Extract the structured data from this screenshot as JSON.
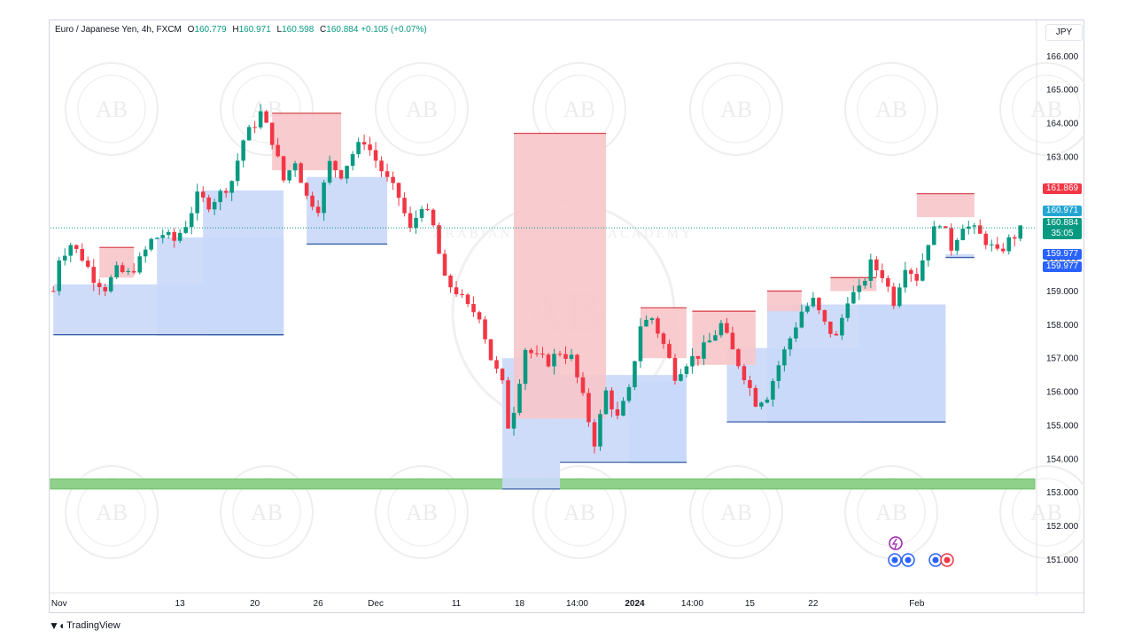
{
  "legend": {
    "symbol": "Euro / Japanese Yen, 4h, FXCM",
    "open_label": "O",
    "open": "160.779",
    "high_label": "H",
    "high": "160.971",
    "low_label": "L",
    "low": "160.598",
    "close_label": "C",
    "close": "160.884",
    "change": "+0.105 (+0.07%)"
  },
  "currency_button": "JPY",
  "price_tags": {
    "red": "161.869",
    "high": "160.971",
    "last": "160.884",
    "countdown": "35:05",
    "blue1": "159.977",
    "blue2": "159.977"
  },
  "colors": {
    "up": "#089981",
    "down": "#f23645",
    "supply_fill": "#f7c5c9",
    "supply_line": "#d84a52",
    "demand_fill": "#c9d8f8",
    "demand_line": "#3a5fa8",
    "support_zone": "#8fd18a",
    "tag_red": "#f23645",
    "tag_cyan": "#22a5d3",
    "tag_green": "#089981",
    "tag_blue": "#2962ff"
  },
  "watermark_text": "ARABIAN BUSINESS ACADEMY",
  "watermark_initials": "AB",
  "footer": {
    "brand": "TradingView"
  },
  "chart_data": {
    "type": "candlestick",
    "title": "",
    "ylim": [
      150.8,
      166.3
    ],
    "y_ticks": [
      "166.000",
      "165.000",
      "164.000",
      "163.000",
      "162.000",
      "161.000",
      "160.000",
      "159.000",
      "158.000",
      "157.000",
      "156.000",
      "155.000",
      "154.000",
      "153.000",
      "152.000",
      "151.000"
    ],
    "x_ticks": [
      "Nov",
      "13",
      "20",
      "26",
      "Dec",
      "11",
      "18",
      "14:00",
      "2024",
      "14:00",
      "15",
      "22",
      "Feb"
    ],
    "x_tick_bars": [
      1,
      22,
      35,
      46,
      56,
      70,
      81,
      91,
      101,
      111,
      121,
      132,
      150
    ],
    "close_path": [
      [
        0,
        159.0
      ],
      [
        1,
        160.0
      ],
      [
        3,
        160.4
      ],
      [
        5,
        160.0
      ],
      [
        7,
        159.4
      ],
      [
        9,
        159.1
      ],
      [
        11,
        159.6
      ],
      [
        13,
        159.5
      ],
      [
        15,
        159.9
      ],
      [
        17,
        160.5
      ],
      [
        19,
        160.7
      ],
      [
        21,
        160.5
      ],
      [
        23,
        161.0
      ],
      [
        25,
        161.8
      ],
      [
        27,
        161.6
      ],
      [
        29,
        161.9
      ],
      [
        31,
        162.3
      ],
      [
        33,
        163.5
      ],
      [
        35,
        164.0
      ],
      [
        36,
        164.3
      ],
      [
        38,
        163.5
      ],
      [
        40,
        162.3
      ],
      [
        42,
        162.9
      ],
      [
        44,
        161.8
      ],
      [
        46,
        161.5
      ],
      [
        48,
        162.8
      ],
      [
        50,
        162.5
      ],
      [
        52,
        163.1
      ],
      [
        54,
        163.5
      ],
      [
        56,
        162.9
      ],
      [
        58,
        162.3
      ],
      [
        60,
        161.8
      ],
      [
        62,
        160.8
      ],
      [
        64,
        161.6
      ],
      [
        66,
        160.9
      ],
      [
        68,
        159.3
      ],
      [
        70,
        159.0
      ],
      [
        72,
        158.5
      ],
      [
        74,
        158.3
      ],
      [
        76,
        157.0
      ],
      [
        78,
        156.2
      ],
      [
        79,
        155.0
      ],
      [
        80,
        155.5
      ],
      [
        82,
        157.3
      ],
      [
        84,
        157.0
      ],
      [
        86,
        156.9
      ],
      [
        88,
        157.2
      ],
      [
        90,
        157.0
      ],
      [
        92,
        155.8
      ],
      [
        94,
        154.5
      ],
      [
        96,
        156.0
      ],
      [
        98,
        155.2
      ],
      [
        100,
        156.0
      ],
      [
        102,
        158.0
      ],
      [
        104,
        158.2
      ],
      [
        106,
        157.4
      ],
      [
        108,
        156.5
      ],
      [
        110,
        156.9
      ],
      [
        112,
        157.1
      ],
      [
        114,
        157.5
      ],
      [
        116,
        158.0
      ],
      [
        118,
        157.2
      ],
      [
        120,
        156.5
      ],
      [
        122,
        155.7
      ],
      [
        124,
        155.9
      ],
      [
        126,
        156.8
      ],
      [
        128,
        157.6
      ],
      [
        130,
        158.4
      ],
      [
        132,
        158.7
      ],
      [
        134,
        158.0
      ],
      [
        136,
        157.6
      ],
      [
        138,
        158.8
      ],
      [
        140,
        159.0
      ],
      [
        142,
        159.8
      ],
      [
        144,
        159.5
      ],
      [
        146,
        158.7
      ],
      [
        148,
        159.8
      ],
      [
        150,
        159.4
      ],
      [
        152,
        160.5
      ],
      [
        154,
        161.1
      ],
      [
        156,
        160.3
      ],
      [
        158,
        161.0
      ],
      [
        160,
        160.8
      ],
      [
        162,
        160.5
      ],
      [
        164,
        160.1
      ],
      [
        166,
        160.5
      ],
      [
        168,
        160.8
      ]
    ],
    "supply_zones": [
      {
        "start_bar": 8,
        "end_bar": 14,
        "top": 160.3,
        "bottom": 159.4
      },
      {
        "start_bar": 38,
        "end_bar": 50,
        "top": 164.3,
        "bottom": 162.6
      },
      {
        "start_bar": 80,
        "end_bar": 96,
        "top": 163.7,
        "bottom": 155.2
      },
      {
        "start_bar": 102,
        "end_bar": 110,
        "top": 158.5,
        "bottom": 157.0
      },
      {
        "start_bar": 111,
        "end_bar": 122,
        "top": 158.4,
        "bottom": 156.8
      },
      {
        "start_bar": 124,
        "end_bar": 130,
        "top": 159.0,
        "bottom": 158.4
      },
      {
        "start_bar": 135,
        "end_bar": 143,
        "top": 159.4,
        "bottom": 159.0
      },
      {
        "start_bar": 150,
        "end_bar": 160,
        "top": 161.9,
        "bottom": 161.2
      }
    ],
    "demand_zones": [
      {
        "start_bar": 0,
        "end_bar": 40,
        "top": 159.2,
        "bottom": 157.7
      },
      {
        "start_bar": 18,
        "end_bar": 40,
        "top": 160.6,
        "bottom": 157.7
      },
      {
        "start_bar": 26,
        "end_bar": 40,
        "top": 162.0,
        "bottom": 157.7
      },
      {
        "start_bar": 44,
        "end_bar": 58,
        "top": 162.4,
        "bottom": 160.4
      },
      {
        "start_bar": 78,
        "end_bar": 88,
        "top": 157.0,
        "bottom": 153.1
      },
      {
        "start_bar": 88,
        "end_bar": 110,
        "top": 156.5,
        "bottom": 153.9
      },
      {
        "start_bar": 100,
        "end_bar": 110,
        "top": 156.3,
        "bottom": 153.9
      },
      {
        "start_bar": 117,
        "end_bar": 155,
        "top": 157.3,
        "bottom": 155.1
      },
      {
        "start_bar": 124,
        "end_bar": 155,
        "top": 158.6,
        "bottom": 155.1
      },
      {
        "start_bar": 140,
        "end_bar": 155,
        "top": 158.6,
        "bottom": 155.1
      },
      {
        "start_bar": 155,
        "end_bar": 160,
        "top": 160.1,
        "bottom": 160.0
      }
    ],
    "support_zone": {
      "top": 153.4,
      "bottom": 153.1
    },
    "last_price_line": 160.884
  }
}
